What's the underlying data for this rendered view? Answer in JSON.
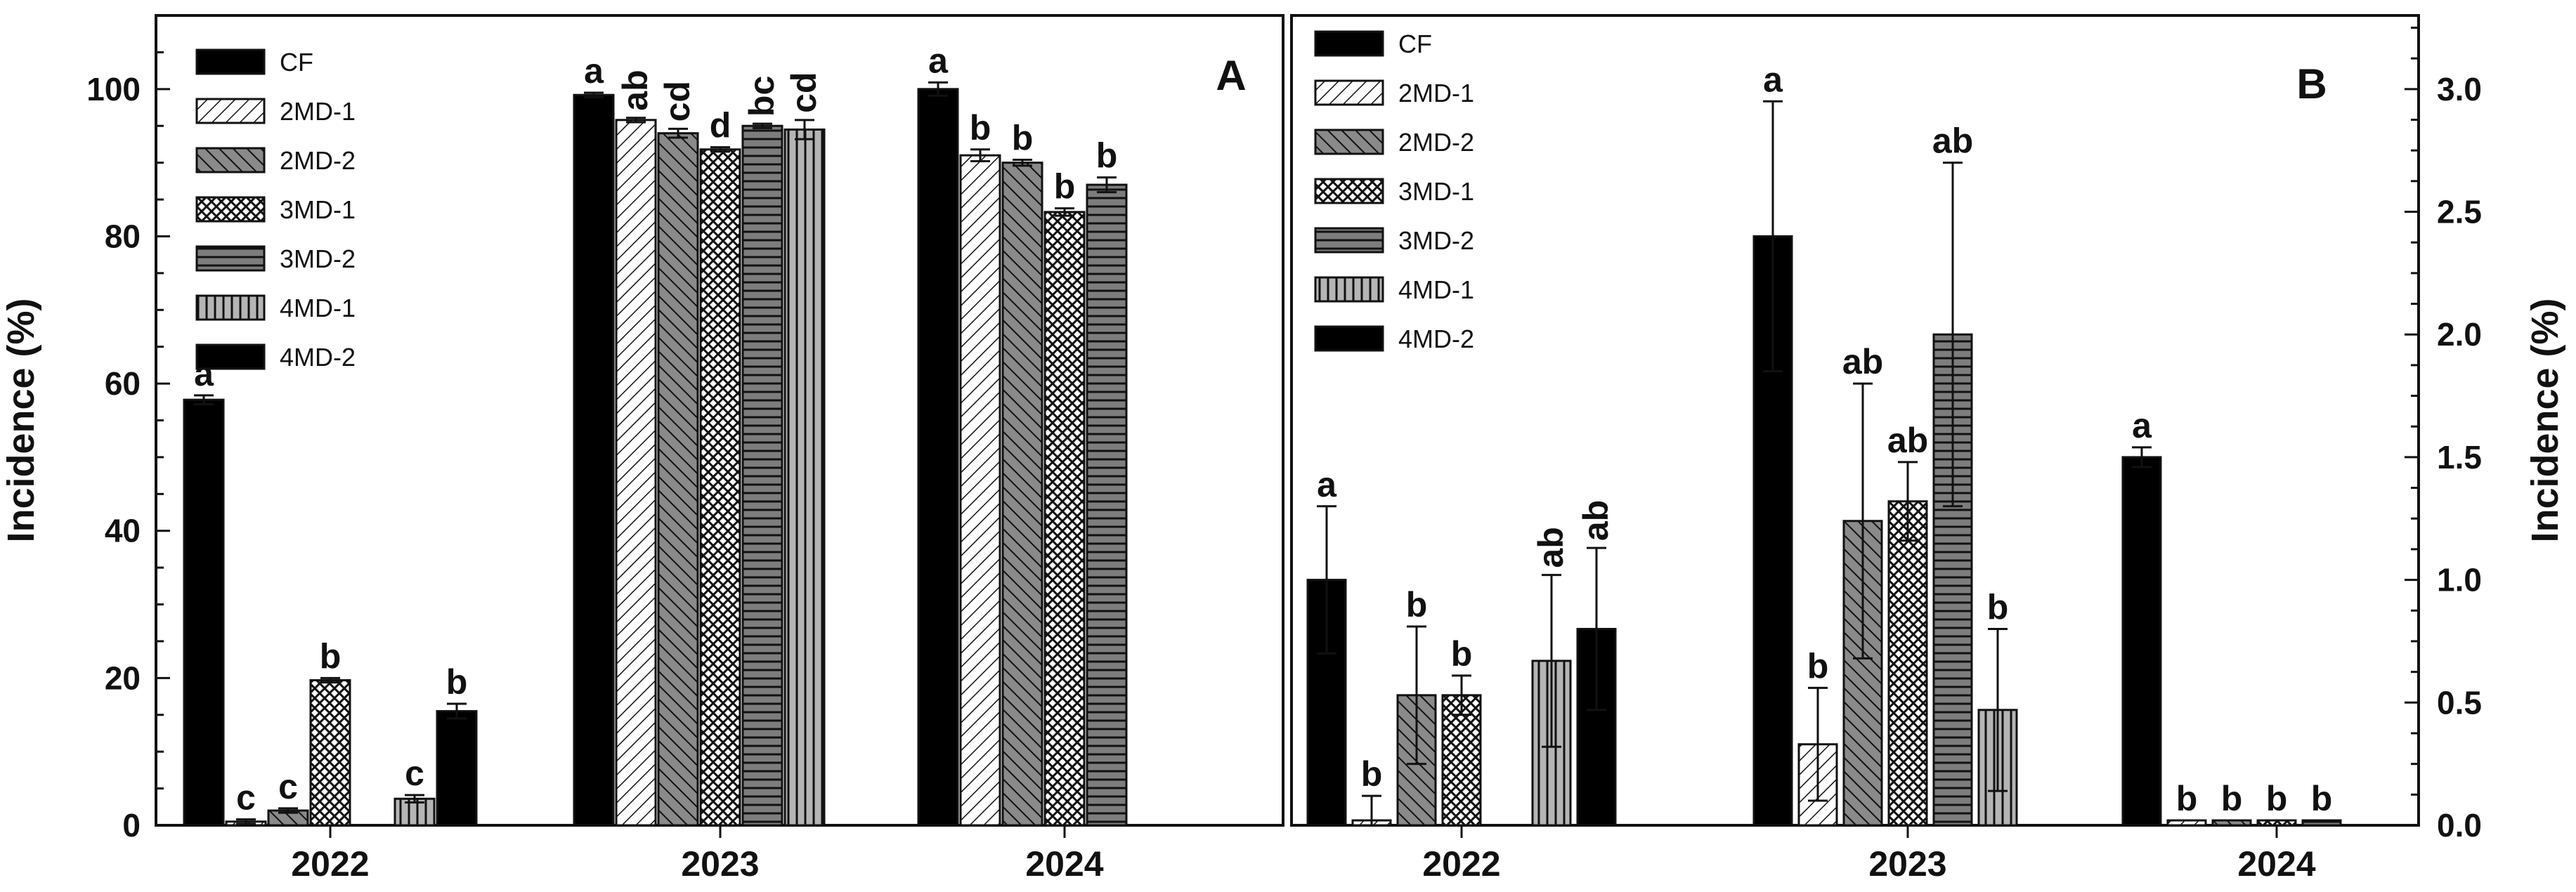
{
  "series_styles": [
    {
      "name": "CF",
      "pattern": "solid-black"
    },
    {
      "name": "2MD-1",
      "pattern": "diag-light"
    },
    {
      "name": "2MD-2",
      "pattern": "diag-dark"
    },
    {
      "name": "3MD-1",
      "pattern": "crosshatch"
    },
    {
      "name": "3MD-2",
      "pattern": "horizontal"
    },
    {
      "name": "4MD-1",
      "pattern": "vertical"
    },
    {
      "name": "4MD-2",
      "pattern": "solid-black"
    }
  ],
  "chart_data": [
    {
      "panel": "A",
      "type": "bar",
      "ylabel": "Incidence (%)",
      "ylim": [
        0,
        110
      ],
      "yticks": [
        0,
        20,
        40,
        60,
        80,
        100
      ],
      "ytick_labels": [
        "0",
        "20",
        "40",
        "60",
        "80",
        "100"
      ],
      "axis_side": "left",
      "legend_position": "top-left",
      "categories": [
        "2022",
        "2023",
        "2024"
      ],
      "series": [
        {
          "name": "CF",
          "values": [
            57.8,
            99.2,
            100.0
          ],
          "errors": [
            0.6,
            0.3,
            0.9
          ],
          "labels": [
            "a",
            "a",
            "a"
          ]
        },
        {
          "name": "2MD-1",
          "values": [
            0.5,
            95.8,
            91.0
          ],
          "errors": [
            0.3,
            0.3,
            0.8
          ],
          "labels": [
            "c",
            "ab",
            "b"
          ]
        },
        {
          "name": "2MD-2",
          "values": [
            2.0,
            94.0,
            90.0
          ],
          "errors": [
            0.3,
            0.6,
            0.4
          ],
          "labels": [
            "c",
            "cd",
            "b"
          ]
        },
        {
          "name": "3MD-1",
          "values": [
            19.7,
            91.8,
            83.3
          ],
          "errors": [
            0.3,
            0.3,
            0.5
          ],
          "labels": [
            "b",
            "d",
            "b"
          ]
        },
        {
          "name": "3MD-2",
          "values": [
            null,
            95.0,
            87.0
          ],
          "errors": [
            null,
            0.3,
            1.0
          ],
          "labels": [
            "",
            "bc",
            "b"
          ]
        },
        {
          "name": "4MD-1",
          "values": [
            3.6,
            94.5,
            null
          ],
          "errors": [
            0.5,
            1.3,
            null
          ],
          "labels": [
            "c",
            "cd",
            ""
          ]
        },
        {
          "name": "4MD-2",
          "values": [
            15.5,
            null,
            null
          ],
          "errors": [
            1.0,
            null,
            null
          ],
          "labels": [
            "b",
            "",
            ""
          ]
        }
      ]
    },
    {
      "panel": "B",
      "type": "bar",
      "ylabel": "Incidence (%)",
      "ylim": [
        0,
        3.3
      ],
      "yticks": [
        0.0,
        0.5,
        1.0,
        1.5,
        2.0,
        2.5,
        3.0
      ],
      "ytick_labels": [
        "0.0",
        "0.5",
        "1.0",
        "1.5",
        "2.0",
        "2.5",
        "3.0"
      ],
      "axis_side": "right",
      "legend_position": "top-left",
      "categories": [
        "2022",
        "2023",
        "2024"
      ],
      "series": [
        {
          "name": "CF",
          "values": [
            1.0,
            2.4,
            1.5
          ],
          "errors": [
            0.3,
            0.55,
            0.04
          ],
          "labels": [
            "a",
            "a",
            "a"
          ]
        },
        {
          "name": "2MD-1",
          "values": [
            0.02,
            0.33,
            0.02
          ],
          "errors": [
            0.1,
            0.23,
            0.0
          ],
          "labels": [
            "b",
            "b",
            "b"
          ]
        },
        {
          "name": "2MD-2",
          "values": [
            0.53,
            1.24,
            0.02
          ],
          "errors": [
            0.28,
            0.56,
            0.0
          ],
          "labels": [
            "b",
            "ab",
            "b"
          ]
        },
        {
          "name": "3MD-1",
          "values": [
            0.53,
            1.32,
            0.02
          ],
          "errors": [
            0.08,
            0.16,
            0.0
          ],
          "labels": [
            "b",
            "ab",
            "b"
          ]
        },
        {
          "name": "3MD-2",
          "values": [
            null,
            2.0,
            0.02
          ],
          "errors": [
            null,
            0.7,
            0.0
          ],
          "labels": [
            "",
            "ab",
            "b"
          ]
        },
        {
          "name": "4MD-1",
          "values": [
            0.67,
            0.47,
            null
          ],
          "errors": [
            0.35,
            0.33,
            null
          ],
          "labels": [
            "ab",
            "b",
            ""
          ]
        },
        {
          "name": "4MD-2",
          "values": [
            0.8,
            null,
            null
          ],
          "errors": [
            0.33,
            null,
            null
          ],
          "labels": [
            "ab",
            "",
            ""
          ]
        }
      ]
    }
  ],
  "panels_meta": [
    {
      "legend_items": [
        "CF",
        "2MD-1",
        "2MD-2",
        "3MD-1",
        "3MD-2",
        "4MD-1",
        "4MD-2"
      ]
    },
    {
      "legend_items": [
        "CF",
        "2MD-1",
        "2MD-2",
        "3MD-1",
        "3MD-2",
        "4MD-1",
        "4MD-2"
      ]
    }
  ]
}
